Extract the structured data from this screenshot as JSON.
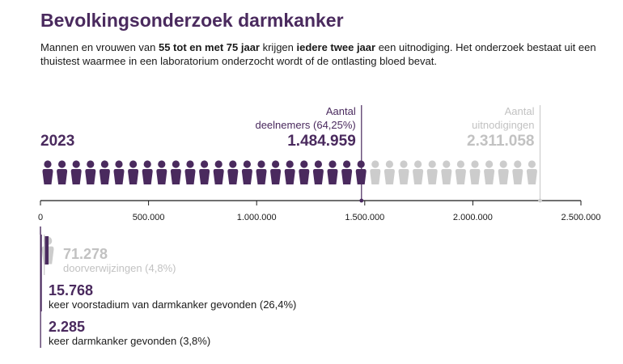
{
  "header": {
    "title": "Bevolkingsonderzoek darmkanker",
    "intro": {
      "t1": "Mannen en vrouwen van ",
      "b1": "55 tot en met 75 jaar",
      "t2": " krijgen ",
      "b2": "iedere twee jaar",
      "t3": " een uitnodiging. Het onderzoek bestaat uit een thuistest waarmee in een laboratorium onderzocht wordt of de ontlasting bloed bevat."
    }
  },
  "colors": {
    "accent": "#4a2a5e",
    "muted": "#cccccc",
    "muted_text": "#c2c2c2",
    "text": "#1a1a1a"
  },
  "chart_data": {
    "type": "bar",
    "year": "2023",
    "icon": "person-icon",
    "axis": {
      "min": 0,
      "max": 2500000,
      "ticks": [
        0,
        500000,
        1000000,
        1500000,
        2000000,
        2500000
      ],
      "tick_labels": [
        "0",
        "500.000",
        "1.000.000",
        "1.500.000",
        "2.000.000",
        "2.500.000"
      ]
    },
    "bars": [
      {
        "id": "deelnemers",
        "value": 1484959,
        "value_label": "1.484.959",
        "label_line1": "Aantal",
        "label_line2": "deelnemers (64,25%)",
        "color": "#4a2a5e"
      },
      {
        "id": "uitnodigingen",
        "value": 2311058,
        "value_label": "2.311.058",
        "label_line1": "Aantal",
        "label_line2": "uitnodigingen",
        "color": "#cccccc"
      }
    ],
    "followups": [
      {
        "id": "doorverwijzingen",
        "value": 71278,
        "value_label": "71.278",
        "label": "doorverwijzingen (4,8%)",
        "color": "#cccccc"
      },
      {
        "id": "voorstadium",
        "value": 15768,
        "value_label": "15.768",
        "label": "keer voorstadium van darmkanker gevonden (26,4%)",
        "color": "#4a2a5e"
      },
      {
        "id": "darmkanker",
        "value": 2285,
        "value_label": "2.285",
        "label": "keer darmkanker gevonden (3,8%)",
        "color": "#4a2a5e"
      }
    ]
  }
}
